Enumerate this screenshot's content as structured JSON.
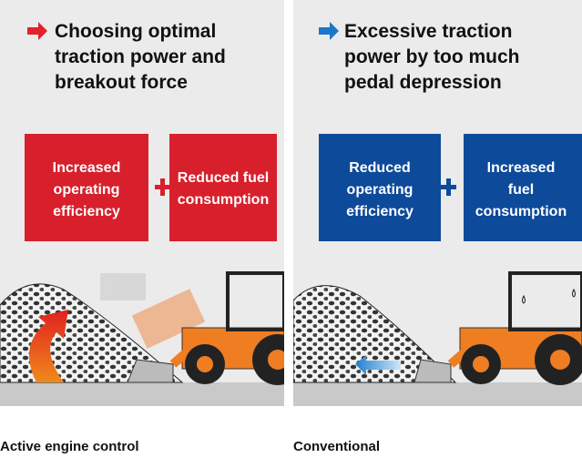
{
  "panels": [
    {
      "title": [
        "Choosing optimal",
        "traction power and",
        "breakout force"
      ],
      "boxes": [
        [
          "Increased",
          "operating",
          "efficiency"
        ],
        [
          "Reduced fuel",
          "consumption"
        ]
      ],
      "caption": "Active engine control"
    },
    {
      "title": [
        "Excessive traction",
        "power by too much",
        "pedal depression"
      ],
      "boxes": [
        [
          "Reduced",
          "operating",
          "efficiency"
        ],
        [
          "Increased",
          "fuel",
          "consumption"
        ]
      ],
      "caption": "Conventional"
    }
  ]
}
